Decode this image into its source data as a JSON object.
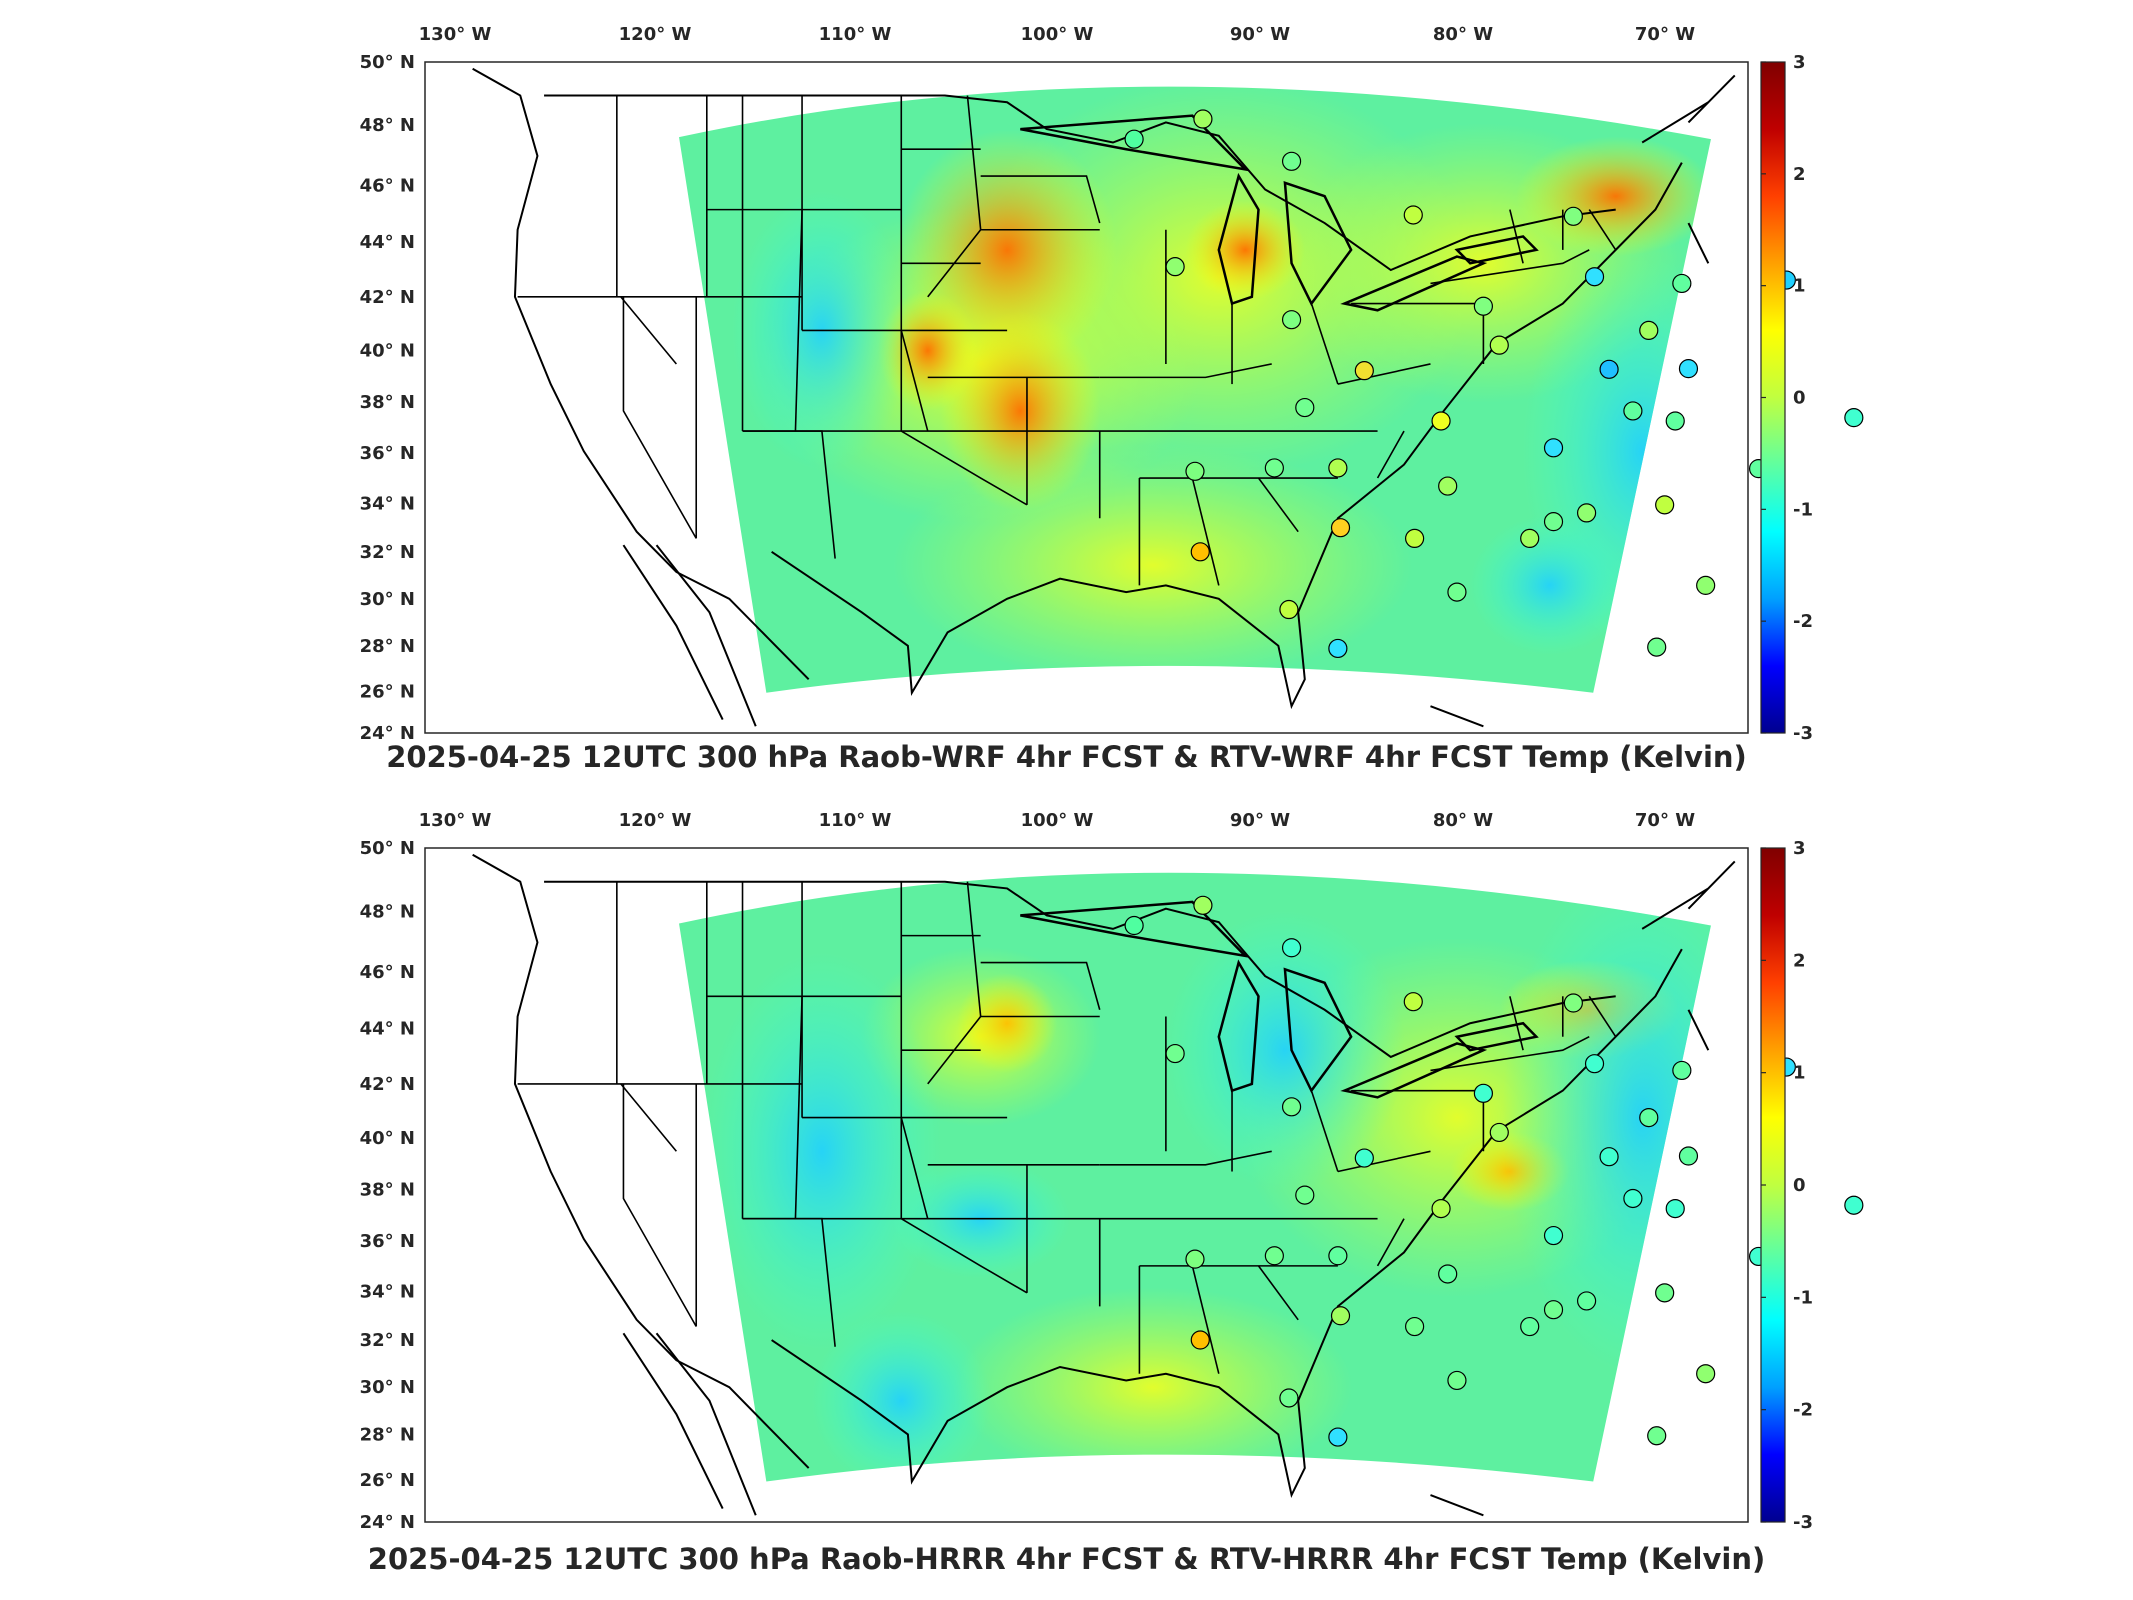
{
  "colors": {
    "frame": "#262626",
    "border": "#000000",
    "colormap": [
      "#00008f",
      "#0000ff",
      "#00a0ff",
      "#00ffff",
      "#60ff9f",
      "#c0ff40",
      "#ffff00",
      "#ffa000",
      "#ff4000",
      "#bf0000",
      "#800000"
    ]
  },
  "axes": {
    "lon_labels": [
      "130° W",
      "120° W",
      "110° W",
      "100° W",
      "90° W",
      "80° W",
      "70° W"
    ],
    "lat_labels": [
      "50° N",
      "48° N",
      "46° N",
      "44° N",
      "42° N",
      "40° N",
      "38° N",
      "36° N",
      "34° N",
      "32° N",
      "30° N",
      "28° N",
      "26° N",
      "24° N"
    ]
  },
  "colorbar": {
    "ticks": [
      "3",
      "2",
      "1",
      "0",
      "-1",
      "-2",
      "-3"
    ],
    "range": [
      -3,
      3
    ]
  },
  "panels": [
    {
      "title": "2025-04-25 12UTC 300 hPa Raob-WRF 4hr FCST & RTV-WRF 4hr FCST Temp (Kelvin)",
      "field": "mostly warm bias over central and Great Lakes region"
    },
    {
      "title": "2025-04-25 12UTC 300 hPa Raob-HRRR 4hr FCST & RTV-HRRR 4hr FCST Temp (Kelvin)",
      "field": "near-neutral with warm spots over Great Lakes"
    }
  ]
}
